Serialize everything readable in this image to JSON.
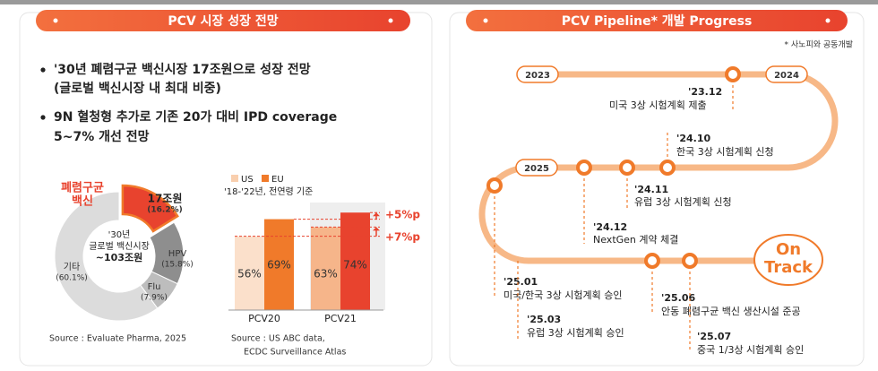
{
  "left": {
    "title": "PCV 시장 성장 전망",
    "bullets": [
      [
        "'30년 폐렴구균 백신시장 17조원으로 성장 전망",
        "(글로벌 백신시장 내 최대 비중)"
      ],
      [
        "9N 혈청형 추가로 기존 20가 대비 IPD coverage",
        "5~7% 개선 전망"
      ]
    ],
    "donut": {
      "type": "pie",
      "center_label": [
        "'30년",
        "글로벌 백신시장",
        "~103조원"
      ],
      "label_lines": [
        [
          "폐렴구균",
          "백신"
        ],
        [
          "HPV"
        ],
        [
          "Flu"
        ],
        [
          "기타"
        ]
      ],
      "values": [
        16.2,
        15.8,
        7.9,
        60.1
      ],
      "value_labels": [
        [
          "17조원",
          "(16.2%)"
        ],
        [
          "(15.8%)"
        ],
        [
          "(7.9%)"
        ],
        [
          "(60.1%)"
        ]
      ],
      "colors": [
        "#e8432e",
        "#8e8e8e",
        "#bdbdbd",
        "#dcdcdc"
      ],
      "source": "Source : Evaluate Pharma, 2025"
    },
    "bars": {
      "type": "bar",
      "subtitle": "'18-'22년, 전연령 기준",
      "categories": [
        "PCV20",
        "PCV21"
      ],
      "series": [
        {
          "name": "US",
          "color": "#f9cfae",
          "bar_colors": [
            "#fbe0cb",
            "#f6b58a"
          ],
          "values": [
            56,
            63
          ],
          "value_labels": [
            "56%",
            "63%"
          ]
        },
        {
          "name": "EU",
          "color": "#f07a2a",
          "bar_colors": [
            "#f07a2a",
            "#e8432e"
          ],
          "values": [
            69,
            74
          ],
          "value_labels": [
            "69%",
            "74%"
          ]
        }
      ],
      "annotations": [
        "+5%p",
        "+7%p"
      ],
      "source": [
        "Source : US ABC data,",
        "ECDC Surveillance Atlas"
      ]
    }
  },
  "right": {
    "title": "PCV Pipeline* 개발 Progress",
    "note": "* 사노피와 공동개발",
    "years": [
      "2023",
      "2024",
      "2025"
    ],
    "on_track": [
      "On",
      "Track"
    ],
    "milestones": [
      {
        "date": "'23.12",
        "text": "미국 3상 시험계획 제출"
      },
      {
        "date": "'24.10",
        "text": "한국 3상 시험계획 신청"
      },
      {
        "date": "'24.11",
        "text": "유럽 3상 시험계획 신청"
      },
      {
        "date": "'24.12",
        "text": "NextGen 계약 체결"
      },
      {
        "date": "'25.01",
        "text": "미국/한국 3상 시험계획 승인"
      },
      {
        "date": "'25.03",
        "text": "유럽 3상 시험계획 승인"
      },
      {
        "date": "'25.06",
        "text": "안동 폐렴구균 백신 생산시설 준공"
      },
      {
        "date": "'25.07",
        "text": "중국 1/3상 시험계획 승인"
      }
    ]
  }
}
